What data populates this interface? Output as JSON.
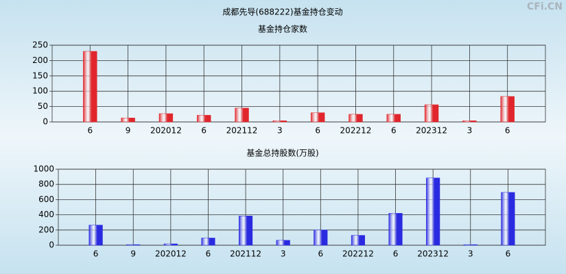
{
  "title": "成都先导(688222)基金持仓变动",
  "watermark": "CFi.CN",
  "chart_data": [
    {
      "type": "bar",
      "title": "基金持仓家数",
      "categories": [
        "6",
        "9",
        "202012",
        "6",
        "202112",
        "3",
        "6",
        "202212",
        "6",
        "202312",
        "3",
        "6"
      ],
      "values": [
        230,
        13,
        27,
        22,
        45,
        4,
        30,
        25,
        25,
        56,
        4,
        83
      ],
      "color": "#e0262c",
      "ylim": [
        0,
        250
      ],
      "yticks": [
        0,
        50,
        100,
        150,
        200,
        250
      ],
      "grid": true
    },
    {
      "type": "bar",
      "title": "基金总持股数(万股)",
      "categories": [
        "6",
        "9",
        "202012",
        "6",
        "202112",
        "3",
        "6",
        "202212",
        "6",
        "202312",
        "3",
        "6"
      ],
      "values": [
        265,
        8,
        18,
        95,
        385,
        65,
        200,
        130,
        420,
        885,
        8,
        695
      ],
      "color": "#2a2ae0",
      "ylim": [
        0,
        1000
      ],
      "yticks": [
        0,
        200,
        400,
        600,
        800,
        1000
      ],
      "grid": true
    }
  ]
}
